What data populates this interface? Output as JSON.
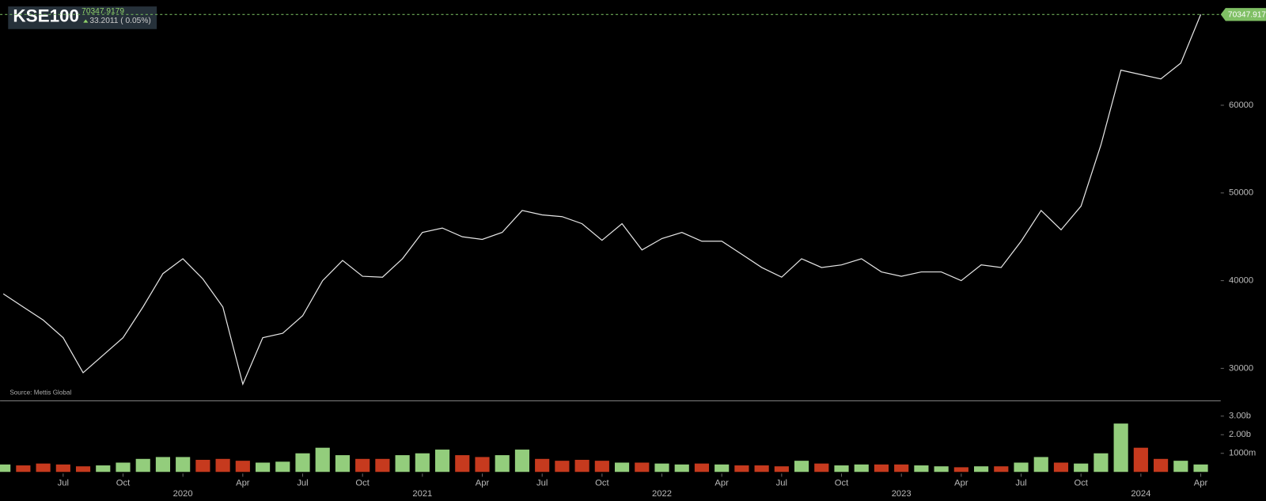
{
  "chart_data": {
    "type": "line",
    "title": "KSE100",
    "change": "33.2011 ( 0.05%)",
    "annotation": "Source: Mettis Global",
    "color": "#e6e6e6",
    "x": [
      "2019-04",
      "2019-05",
      "2019-06",
      "2019-07",
      "2019-08",
      "2019-09",
      "2019-10",
      "2019-11",
      "2019-12",
      "2020-01",
      "2020-02",
      "2020-03",
      "2020-04",
      "2020-05",
      "2020-06",
      "2020-07",
      "2020-08",
      "2020-09",
      "2020-10",
      "2020-11",
      "2020-12",
      "2021-01",
      "2021-02",
      "2021-03",
      "2021-04",
      "2021-05",
      "2021-06",
      "2021-07",
      "2021-08",
      "2021-09",
      "2021-10",
      "2021-11",
      "2021-12",
      "2022-01",
      "2022-02",
      "2022-03",
      "2022-04",
      "2022-05",
      "2022-06",
      "2022-07",
      "2022-08",
      "2022-09",
      "2022-10",
      "2022-11",
      "2022-12",
      "2023-01",
      "2023-02",
      "2023-03",
      "2023-04",
      "2023-05",
      "2023-06",
      "2023-07",
      "2023-08",
      "2023-09",
      "2023-10",
      "2023-11",
      "2023-12",
      "2024-01",
      "2024-02",
      "2024-03",
      "2024-04"
    ],
    "values": [
      38500,
      37000,
      35500,
      33500,
      29500,
      31500,
      33500,
      37000,
      40800,
      42500,
      40200,
      37000,
      28200,
      33500,
      34000,
      36000,
      40000,
      42300,
      40500,
      40400,
      42500,
      45500,
      46000,
      45000,
      44700,
      45500,
      48000,
      47500,
      47300,
      46500,
      44600,
      46500,
      43500,
      44800,
      45500,
      44500,
      44500,
      43000,
      41500,
      40400,
      42500,
      41500,
      41800,
      42500,
      41000,
      40500,
      41000,
      41000,
      40000,
      41800,
      41500,
      44500,
      48000,
      45800,
      48500,
      55500,
      64000,
      63500,
      63000,
      64800,
      70347.9179
    ],
    "xlim": [
      "2019-04",
      "2024-05"
    ],
    "xticks": [
      {
        "value": "2019-07",
        "label": "Jul"
      },
      {
        "value": "2019-10",
        "label": "Oct"
      },
      {
        "value": "2020-01",
        "label": "2020"
      },
      {
        "value": "2020-04",
        "label": "Apr"
      },
      {
        "value": "2020-07",
        "label": "Jul"
      },
      {
        "value": "2020-10",
        "label": "Oct"
      },
      {
        "value": "2021-01",
        "label": "2021"
      },
      {
        "value": "2021-04",
        "label": "Apr"
      },
      {
        "value": "2021-07",
        "label": "Jul"
      },
      {
        "value": "2021-10",
        "label": "Oct"
      },
      {
        "value": "2022-01",
        "label": "2022"
      },
      {
        "value": "2022-04",
        "label": "Apr"
      },
      {
        "value": "2022-07",
        "label": "Jul"
      },
      {
        "value": "2022-10",
        "label": "Oct"
      },
      {
        "value": "2023-01",
        "label": "2023"
      },
      {
        "value": "2023-04",
        "label": "Apr"
      },
      {
        "value": "2023-07",
        "label": "Jul"
      },
      {
        "value": "2023-10",
        "label": "Oct"
      },
      {
        "value": "2024-01",
        "label": "2024"
      },
      {
        "value": "2024-04",
        "label": "Apr"
      }
    ],
    "ylim": [
      26300,
      72000
    ],
    "yticks": [
      30000,
      40000,
      50000,
      60000
    ],
    "volume": {
      "values": [
        400,
        350,
        450,
        400,
        300,
        350,
        500,
        700,
        800,
        800,
        650,
        700,
        600,
        500,
        550,
        1000,
        1300,
        900,
        700,
        700,
        900,
        1000,
        1200,
        900,
        800,
        900,
        1200,
        700,
        600,
        650,
        600,
        500,
        500,
        450,
        400,
        450,
        400,
        350,
        350,
        300,
        600,
        450,
        350,
        400,
        400,
        400,
        350,
        300,
        250,
        300,
        300,
        500,
        800,
        500,
        450,
        1000,
        2600,
        1300,
        700,
        600,
        400
      ],
      "ylim": [
        0,
        3780
      ],
      "yticks": [
        {
          "value": 3000,
          "label": "3.00b"
        },
        {
          "value": 2000,
          "label": "2.00b"
        },
        {
          "value": 1000,
          "label": "1000m"
        }
      ],
      "up_color": "#93cd7c",
      "down_color": "#c63a1e"
    }
  }
}
